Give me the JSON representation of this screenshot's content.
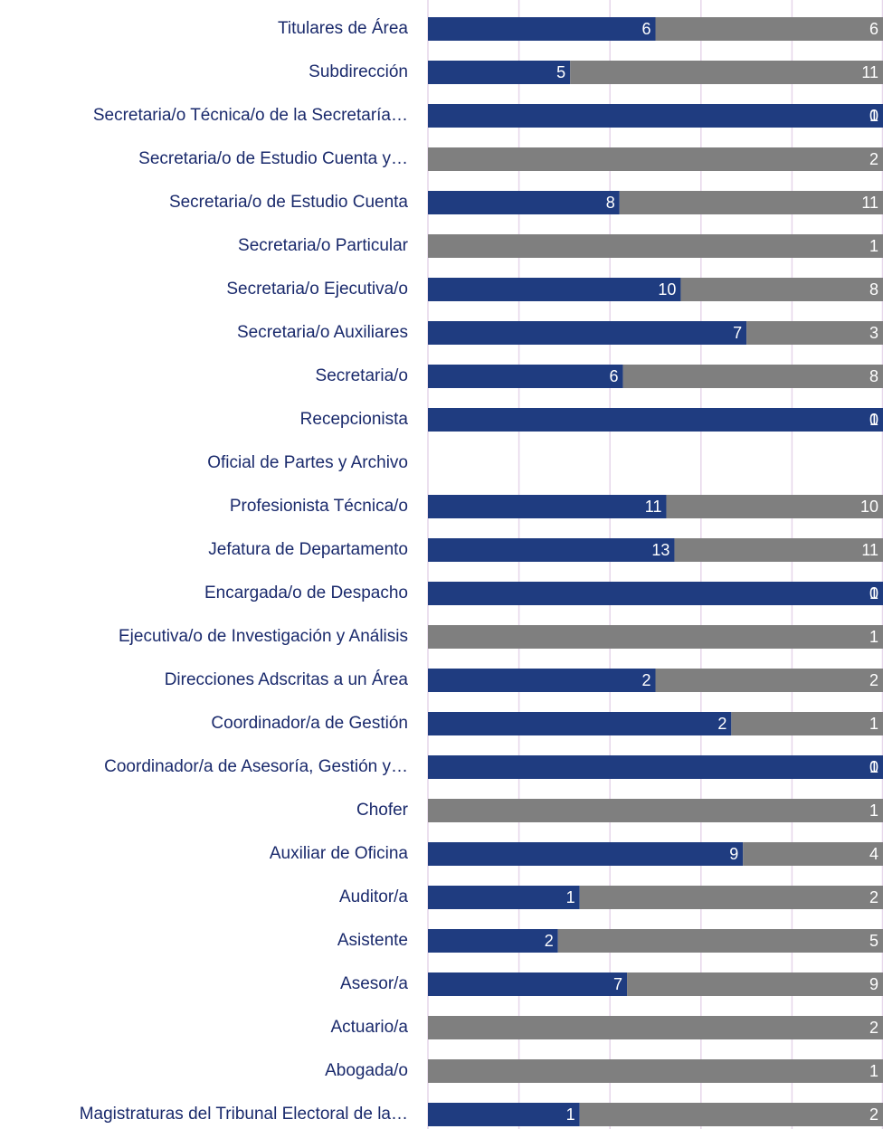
{
  "chart_data": {
    "type": "bar",
    "orientation": "horizontal",
    "stacking": "percent",
    "categories": [
      "Titulares de Área",
      "Subdirección",
      "Secretaria/o Técnica/o de la Secretaría…",
      "Secretaria/o de Estudio Cuenta y…",
      "Secretaria/o de Estudio Cuenta",
      "Secretaria/o Particular",
      "Secretaria/o Ejecutiva/o",
      "Secretaria/o Auxiliares",
      "Secretaria/o",
      "Recepcionista",
      "Oficial de Partes y Archivo",
      "Profesionista Técnica/o",
      "Jefatura de Departamento",
      "Encargada/o de Despacho",
      "Ejecutiva/o de Investigación y Análisis",
      "Direcciones Adscritas a un Área",
      "Coordinador/a de Gestión",
      "Coordinador/a de Asesoría, Gestión y…",
      "Chofer",
      "Auxiliar de Oficina",
      "Auditor/a",
      "Asistente",
      "Asesor/a",
      "Actuario/a",
      "Abogada/o",
      "Magistraturas  del Tribunal Electoral de la…"
    ],
    "series": [
      {
        "color": "#1f3c80",
        "values": [
          6,
          5,
          1,
          null,
          8,
          null,
          10,
          7,
          6,
          1,
          null,
          11,
          13,
          1,
          null,
          2,
          2,
          1,
          null,
          9,
          1,
          2,
          7,
          null,
          null,
          1
        ]
      },
      {
        "color": "#7f7f7f",
        "values": [
          6,
          11,
          0,
          2,
          11,
          1,
          8,
          3,
          8,
          0,
          null,
          10,
          11,
          0,
          1,
          2,
          1,
          0,
          1,
          4,
          2,
          5,
          9,
          2,
          1,
          2
        ]
      }
    ],
    "xlim": [
      0,
      100
    ],
    "xticks": [
      0,
      20,
      40,
      60,
      80,
      100
    ],
    "grid": true
  }
}
